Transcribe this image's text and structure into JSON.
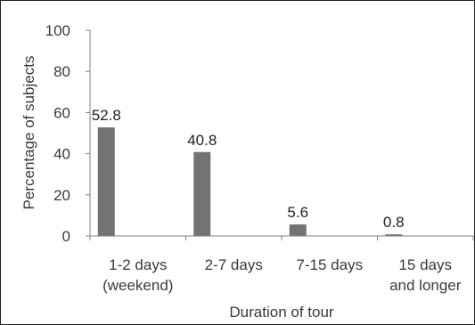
{
  "chart_data": {
    "type": "bar",
    "categories": [
      [
        "1-2 days",
        "(weekend)"
      ],
      [
        "2-7 days"
      ],
      [
        "7-15 days"
      ],
      [
        "15 days",
        "and longer"
      ]
    ],
    "values": [
      52.8,
      40.8,
      5.6,
      0.8
    ],
    "data_labels": [
      "52.8",
      "40.8",
      "5.6",
      "0.8"
    ],
    "title": "",
    "xlabel": "Duration of tour",
    "ylabel": "Percentage of subjects",
    "ylim": [
      0,
      100
    ],
    "yticks": [
      0,
      20,
      40,
      60,
      80,
      100
    ],
    "grid": false,
    "bar_color": "#737373",
    "axis_color": "#808080"
  }
}
